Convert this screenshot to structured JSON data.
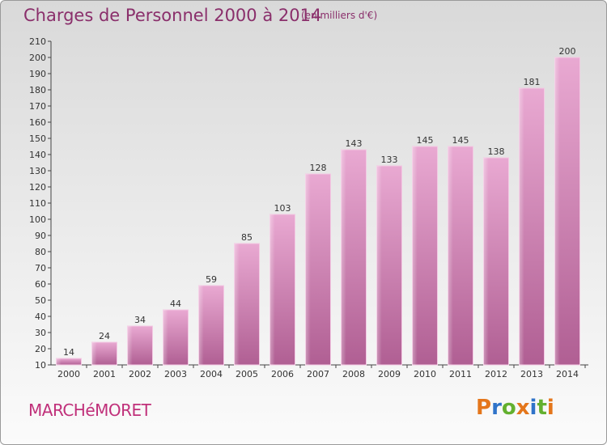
{
  "header": {
    "title": "Charges de Personnel 2000 à 2014",
    "subtitle": "(en milliers d'€)"
  },
  "footer": {
    "commune": "MARCHéMORET",
    "logo_text": "Proxiti"
  },
  "colors": {
    "title": "#8a2f6b",
    "bar_light": "#e9a9d2",
    "bar_dark": "#b05f93",
    "commune": "#c0307a",
    "logo_letters": [
      "#e4761b",
      "#2f73c9",
      "#63b02f",
      "#e4761b",
      "#2f73c9",
      "#63b02f",
      "#e4761b"
    ]
  },
  "chart_data": {
    "type": "bar",
    "title": "Charges de Personnel 2000 à 2014",
    "subtitle": "(en milliers d'€)",
    "xlabel": "",
    "ylabel": "",
    "categories": [
      "2000",
      "2001",
      "2002",
      "2003",
      "2004",
      "2005",
      "2006",
      "2007",
      "2008",
      "2009",
      "2010",
      "2011",
      "2012",
      "2013",
      "2014"
    ],
    "values": [
      14,
      24,
      34,
      44,
      59,
      85,
      103,
      128,
      143,
      133,
      145,
      145,
      138,
      181,
      200
    ],
    "ylim": [
      10,
      210
    ],
    "yticks": [
      10,
      20,
      30,
      40,
      50,
      60,
      70,
      80,
      90,
      100,
      110,
      120,
      130,
      140,
      150,
      160,
      170,
      180,
      190,
      200,
      210
    ],
    "grid": false,
    "legend": "none"
  }
}
